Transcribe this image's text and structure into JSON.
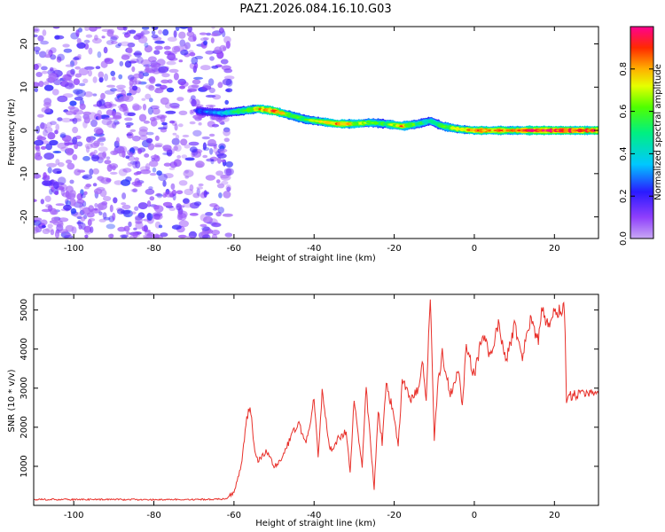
{
  "title": "PAZ1.2026.084.16.10.G03",
  "chart_data": [
    {
      "type": "heatmap",
      "name": "spectrogram",
      "xlabel": "Height of straight line (km)",
      "ylabel": "Frequency (Hz)",
      "xlim": [
        -110,
        31
      ],
      "ylim": [
        -25,
        24
      ],
      "xticks": [
        -100,
        -80,
        -60,
        -40,
        -20,
        0,
        20
      ],
      "yticks": [
        20,
        10,
        0,
        -10,
        -20
      ],
      "noise_region": {
        "x_from": -110,
        "x_to": -61,
        "amplitude_range": [
          0.05,
          0.25
        ]
      },
      "ridge": [
        {
          "x": -69,
          "f": 4.5,
          "a": 0.25
        },
        {
          "x": -63,
          "f": 4.0,
          "a": 0.35
        },
        {
          "x": -58,
          "f": 4.5,
          "a": 0.55
        },
        {
          "x": -54,
          "f": 5.0,
          "a": 0.75
        },
        {
          "x": -50,
          "f": 4.5,
          "a": 0.9
        },
        {
          "x": -46,
          "f": 3.5,
          "a": 0.6
        },
        {
          "x": -42,
          "f": 2.5,
          "a": 0.55
        },
        {
          "x": -38,
          "f": 2.0,
          "a": 0.7
        },
        {
          "x": -34,
          "f": 1.5,
          "a": 0.85
        },
        {
          "x": -30,
          "f": 1.5,
          "a": 0.7
        },
        {
          "x": -26,
          "f": 1.8,
          "a": 0.6
        },
        {
          "x": -22,
          "f": 1.5,
          "a": 0.55
        },
        {
          "x": -18,
          "f": 1.0,
          "a": 0.8
        },
        {
          "x": -14,
          "f": 1.5,
          "a": 0.5
        },
        {
          "x": -11,
          "f": 2.2,
          "a": 0.45
        },
        {
          "x": -8,
          "f": 1.0,
          "a": 0.6
        },
        {
          "x": -4,
          "f": 0.3,
          "a": 0.7
        },
        {
          "x": 0,
          "f": 0.0,
          "a": 0.8
        },
        {
          "x": 5,
          "f": 0.0,
          "a": 0.85
        },
        {
          "x": 10,
          "f": 0.0,
          "a": 0.75
        },
        {
          "x": 15,
          "f": 0.0,
          "a": 0.9
        },
        {
          "x": 20,
          "f": 0.0,
          "a": 0.95
        },
        {
          "x": 25,
          "f": 0.0,
          "a": 0.9
        },
        {
          "x": 31,
          "f": 0.0,
          "a": 0.85
        }
      ],
      "colorbar": {
        "label": "Normalized spectral amplitude",
        "ticks": [
          0.0,
          0.2,
          0.4,
          0.6,
          0.8
        ],
        "tick_labels": [
          "0.0",
          "0.2",
          "0.4",
          "0.6",
          "0.8"
        ],
        "range": [
          0,
          1
        ]
      }
    },
    {
      "type": "line",
      "name": "snr",
      "xlabel": "Height of straight line (km)",
      "ylabel": "SNR (10 * v/v)",
      "xlim": [
        -110,
        31
      ],
      "ylim": [
        0,
        5400
      ],
      "xticks": [
        -100,
        -80,
        -60,
        -40,
        -20,
        0,
        20
      ],
      "yticks": [
        1000,
        2000,
        3000,
        4000,
        5000
      ],
      "color": "#e8302a",
      "series": [
        {
          "name": "SNR",
          "x": [
            -110,
            -100,
            -90,
            -80,
            -70,
            -62,
            -60,
            -58,
            -57,
            -56,
            -55,
            -54,
            -52,
            -50,
            -48,
            -46,
            -44,
            -42,
            -40,
            -39,
            -38,
            -36,
            -34,
            -32,
            -31,
            -30,
            -28,
            -27,
            -26,
            -25,
            -24,
            -23,
            -22,
            -20,
            -19,
            -18,
            -16,
            -14,
            -13,
            -12,
            -11,
            -10,
            -9,
            -8,
            -6,
            -4,
            -3,
            -2,
            0,
            2,
            4,
            6,
            8,
            10,
            12,
            14,
            16,
            17,
            18,
            20,
            22,
            22.5,
            23,
            24,
            26,
            28,
            31
          ],
          "values": [
            150,
            150,
            150,
            150,
            150,
            160,
            350,
            1100,
            2100,
            2600,
            1500,
            1100,
            1400,
            1000,
            1200,
            1700,
            2100,
            1600,
            2700,
            1200,
            2900,
            1400,
            1700,
            1900,
            800,
            2700,
            1000,
            3000,
            1700,
            400,
            2500,
            1600,
            3100,
            2300,
            1500,
            3200,
            2700,
            3000,
            3700,
            2700,
            5400,
            1700,
            3200,
            3900,
            2800,
            3500,
            2600,
            4100,
            3300,
            4400,
            3800,
            4600,
            3700,
            4600,
            3800,
            4800,
            4200,
            5100,
            4600,
            4900,
            5000,
            5100,
            2700,
            2800,
            2850,
            2850,
            2850
          ]
        }
      ]
    }
  ]
}
